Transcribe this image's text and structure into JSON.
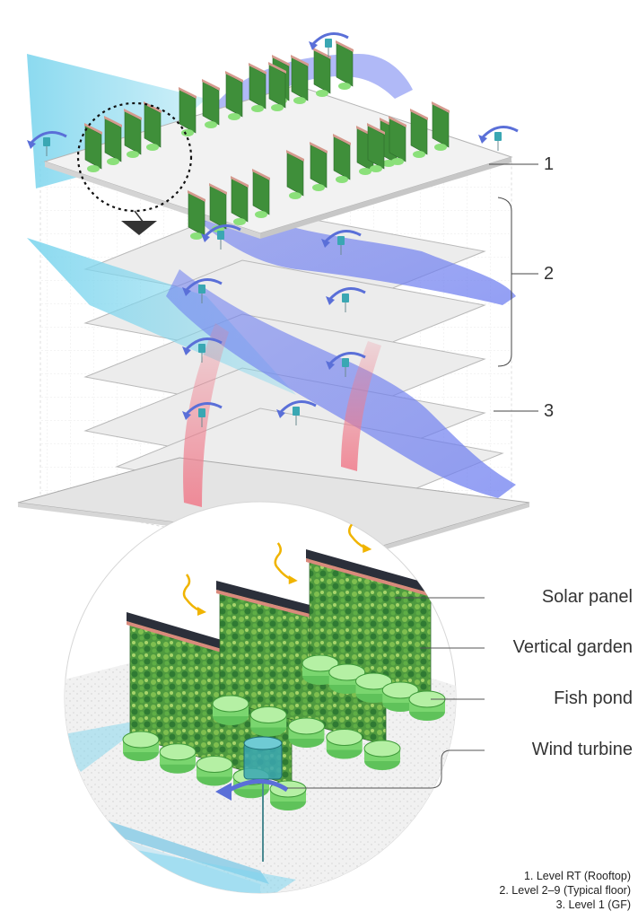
{
  "level_markers": [
    "1",
    "2",
    "3"
  ],
  "callouts": [
    {
      "name": "solar-panel",
      "label": "Solar panel"
    },
    {
      "name": "vertical-garden",
      "label": "Vertical garden"
    },
    {
      "name": "fish-pond",
      "label": "Fish pond"
    },
    {
      "name": "wind-turbine",
      "label": "Wind turbine"
    }
  ],
  "legend": [
    "1. Level RT (Rooftop)",
    "2. Level 2–9 (Typical floor)",
    "3. Level 1 (GF)"
  ],
  "colors": {
    "airflow_light": "#7fd6ee",
    "airflow_blue": "#6f7ff0",
    "airflow_red": "#f07a8a",
    "garden_green": "#3f8f3a",
    "pond_green": "#8be07a",
    "solar_dark": "#2b2f3a",
    "turbine": "#3aa7b3",
    "floor": "#e6e6e6",
    "sun_ray": "#f0b400"
  }
}
